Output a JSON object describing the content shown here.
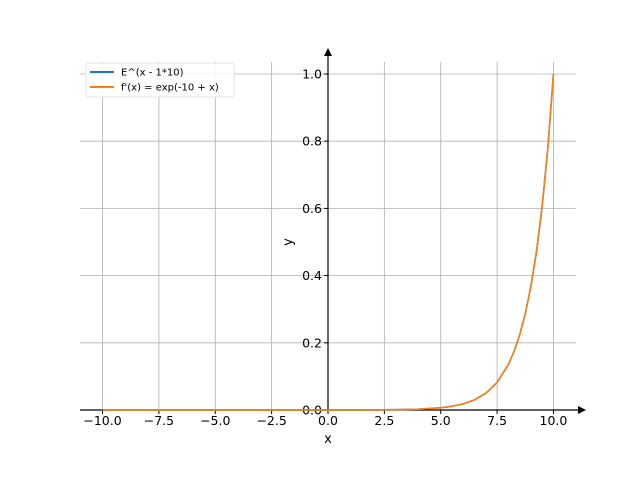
{
  "chart_data": {
    "type": "line",
    "title": "",
    "xlabel": "x",
    "ylabel": "y",
    "xlim": [
      -11.0,
      11.0
    ],
    "ylim": [
      0.0,
      1.0
    ],
    "xticks": [
      -10.0,
      -7.5,
      -5.0,
      -2.5,
      0.0,
      2.5,
      5.0,
      7.5,
      10.0
    ],
    "xtick_labels": [
      "−10.0",
      "−7.5",
      "−5.0",
      "−2.5",
      "0.0",
      "2.5",
      "5.0",
      "7.5",
      "10.0"
    ],
    "yticks": [
      0.0,
      0.2,
      0.4,
      0.6,
      0.8,
      1.0
    ],
    "ytick_labels": [
      "0.0",
      "0.2",
      "0.4",
      "0.6",
      "0.8",
      "1.0"
    ],
    "grid": true,
    "legend": "top-left",
    "series": [
      {
        "name": "E^(x - 1*10)",
        "color": "#1f77b4",
        "x": [
          -10,
          -8,
          -6,
          -4,
          -2,
          0,
          1,
          2,
          3,
          4,
          5,
          5.5,
          6,
          6.5,
          7,
          7.5,
          8,
          8.25,
          8.5,
          8.75,
          9,
          9.25,
          9.5,
          9.75,
          10
        ],
        "y": [
          2e-09,
          1.5e-08,
          1.1e-07,
          8.3e-07,
          6.1e-06,
          4.54e-05,
          0.000123,
          0.000335,
          0.000912,
          0.00248,
          0.00674,
          0.0111,
          0.0183,
          0.0302,
          0.0498,
          0.0821,
          0.1353,
          0.1738,
          0.2231,
          0.2865,
          0.3679,
          0.4724,
          0.6065,
          0.7788,
          1.0
        ]
      },
      {
        "name": "f'(x) = exp(-10 + x)",
        "color": "#ff7f0e",
        "x": [
          -10,
          -8,
          -6,
          -4,
          -2,
          0,
          1,
          2,
          3,
          4,
          5,
          5.5,
          6,
          6.5,
          7,
          7.5,
          8,
          8.25,
          8.5,
          8.75,
          9,
          9.25,
          9.5,
          9.75,
          10
        ],
        "y": [
          2e-09,
          1.5e-08,
          1.1e-07,
          8.3e-07,
          6.1e-06,
          4.54e-05,
          0.000123,
          0.000335,
          0.000912,
          0.00248,
          0.00674,
          0.0111,
          0.0183,
          0.0302,
          0.0498,
          0.0821,
          0.1353,
          0.1738,
          0.2231,
          0.2865,
          0.3679,
          0.4724,
          0.6065,
          0.7788,
          1.0
        ]
      }
    ]
  }
}
